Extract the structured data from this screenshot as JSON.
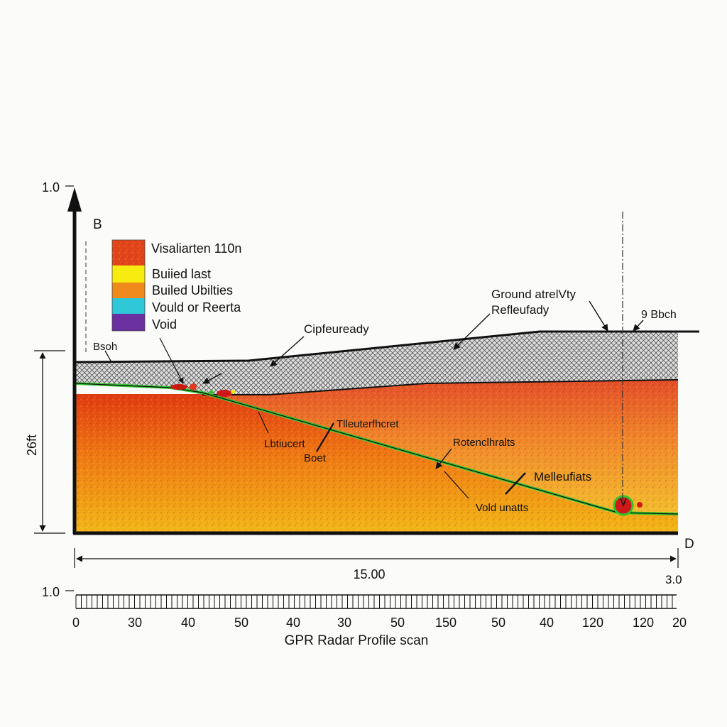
{
  "figure": {
    "caption": "GPR Radar Profile scan",
    "colors": {
      "background": "#fbfbfa",
      "ink": "#111111",
      "soil_top": "#e03a12",
      "soil_mid": "#ef7a14",
      "soil_bottom": "#f2b818",
      "gravel": "#d9d9d9",
      "reflector": "#2ec52e",
      "anomaly": "#d01818"
    }
  },
  "vertical_axis": {
    "top_tick": "1.0",
    "point_label": "B"
  },
  "legend": {
    "items": [
      {
        "label": "Visaliarten 110n",
        "color": "#e2451a"
      },
      {
        "label": "Buiied last",
        "color": "#f6ec10"
      },
      {
        "label": "Builed Ubilties",
        "color": "#f08a1c"
      },
      {
        "label": "Vould or Reerta",
        "color": "#2ec8d8"
      },
      {
        "label": "Void",
        "color": "#6a30a0"
      }
    ]
  },
  "annotations": {
    "ground": "Ground atrelVty",
    "reflectivity": "Refleufady",
    "right_depth": "9 Bbch",
    "left_depth": "Bsoh",
    "overburden": "Cipfeuready",
    "interface": "Tlleuterfhcret",
    "local_top": "Lbtiucert",
    "local_bottom": "Boet",
    "reflector": "Rotenclhralts",
    "mellow": "Melleufiats",
    "void": "Vold unatts"
  },
  "depth_dimension": {
    "label": "26ft"
  },
  "distance_dimension": {
    "label": "15.00",
    "end_label": "D",
    "right_value": "3.0"
  },
  "scale_bar": {
    "left_label": "1.0",
    "ticks": [
      "0",
      "30",
      "40",
      "50",
      "40",
      "30",
      "50",
      "150",
      "50",
      "40",
      "120",
      "120",
      "20"
    ]
  }
}
